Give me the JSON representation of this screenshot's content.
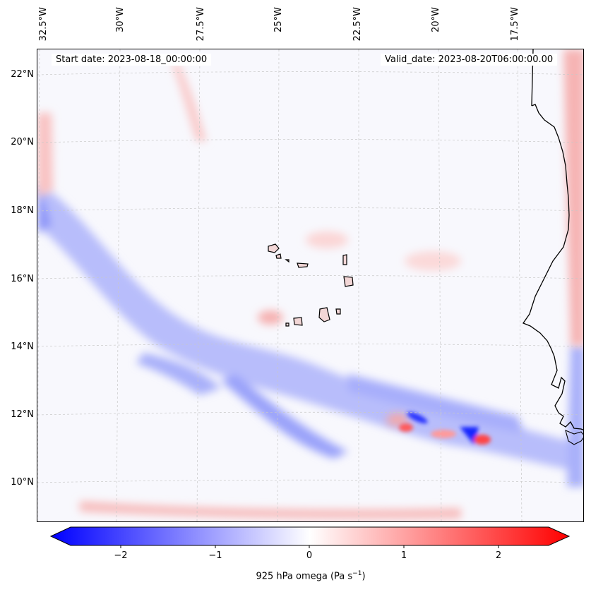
{
  "map": {
    "start_date_text": "Start date: 2023-08-18_00:00:00",
    "valid_date_text": "Valid_date: 2023-08-20T06:00:00.00",
    "lon_labels": [
      "32.5°W",
      "30°W",
      "27.5°W",
      "25°W",
      "22.5°W",
      "20°W",
      "17.5°W"
    ],
    "lat_labels": [
      "22°N",
      "20°N",
      "18°N",
      "16°N",
      "14°N",
      "12°N",
      "10°N"
    ],
    "colors": {
      "negative": "#0000ff",
      "zero": "#ffffff",
      "positive": "#ff0000",
      "coast": "#000000"
    }
  },
  "colorbar": {
    "ticks": [
      "−2",
      "−1",
      "0",
      "1",
      "2"
    ],
    "range": [
      -2.6,
      2.6
    ],
    "label_text": "925 hPa omega (Pa s",
    "label_sup": "−1",
    "label_close": ")"
  }
}
